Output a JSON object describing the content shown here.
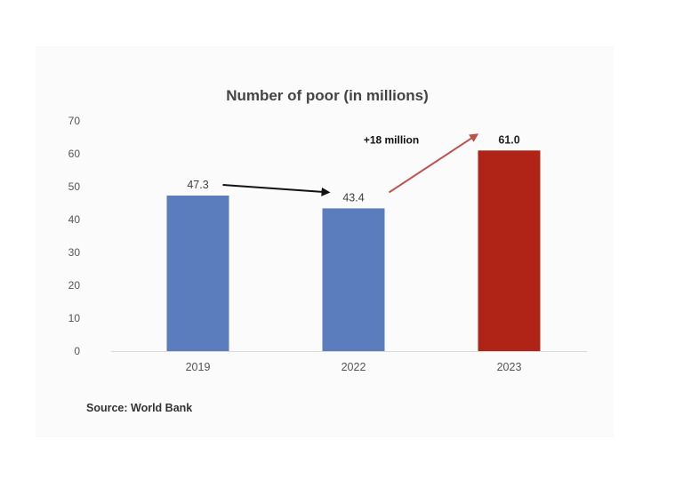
{
  "chart_data": {
    "type": "bar",
    "title": "Number of poor (in millions)",
    "categories": [
      "2019",
      "2022",
      "2023"
    ],
    "values": [
      47.3,
      43.4,
      61.0
    ],
    "value_labels": [
      "47.3",
      "43.4",
      "61.0"
    ],
    "bar_colors": [
      "#5b7dbd",
      "#5b7dbd",
      "#b02418"
    ],
    "ylim": [
      0,
      70
    ],
    "yticks": [
      0,
      10,
      20,
      30,
      40,
      50,
      60,
      70
    ],
    "grid": false,
    "legend": "none",
    "annotations": [
      {
        "type": "arrow",
        "from": "2019",
        "to": "2022",
        "color": "#111111"
      },
      {
        "type": "arrow",
        "from": "2022",
        "to": "2023",
        "color": "#c0504d",
        "text": "+18 million"
      }
    ],
    "source": "Source: World Bank"
  },
  "colors": {
    "bar_default": "#5b7dbd",
    "bar_highlight": "#b02418",
    "arrow_dark": "#111111",
    "arrow_red": "#c0504d"
  }
}
